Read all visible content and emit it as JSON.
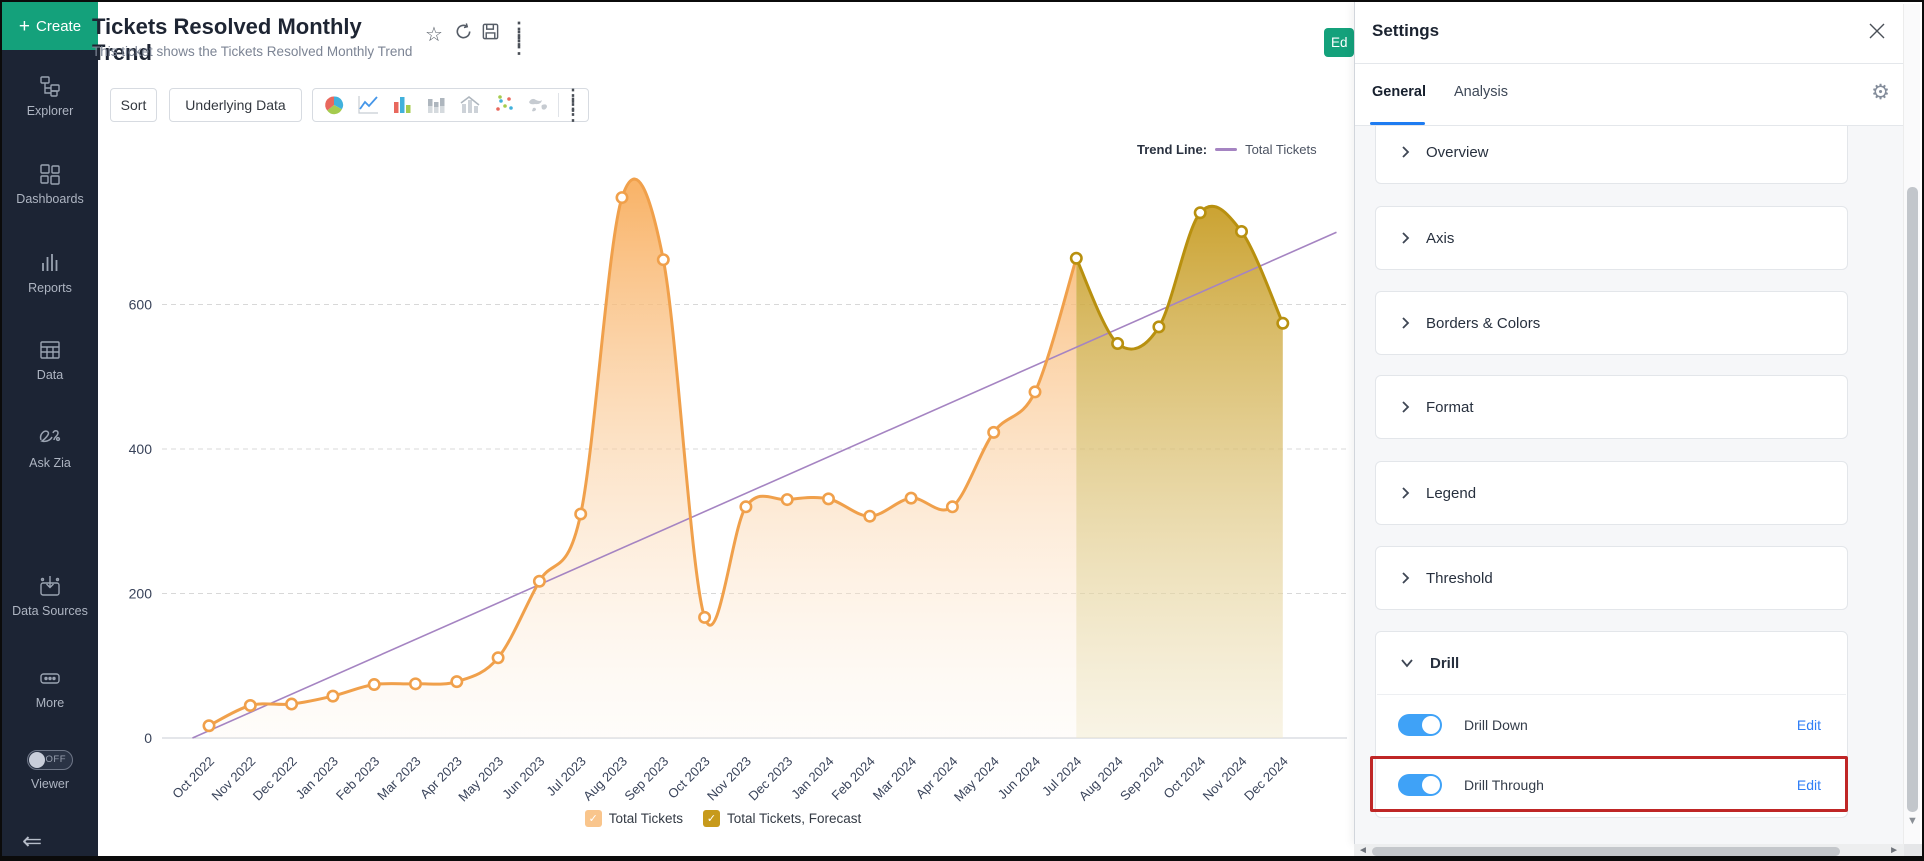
{
  "sidebar": {
    "create": {
      "label": "Create",
      "plus": "+"
    },
    "items": [
      {
        "label": "Explorer",
        "icon": "explorer-tree-icon"
      },
      {
        "label": "Dashboards",
        "icon": "dashboards-grid-icon"
      },
      {
        "label": "Reports",
        "icon": "reports-bars-icon"
      },
      {
        "label": "Data",
        "icon": "data-table-icon"
      },
      {
        "label": "Ask Zia",
        "icon": "ask-zia-icon"
      },
      {
        "label": "Data Sources",
        "icon": "data-sources-icon"
      },
      {
        "label": "More",
        "icon": "more-ellipsis-icon"
      }
    ],
    "viewer_toggle": {
      "label": "Viewer",
      "state": "OFF"
    }
  },
  "header": {
    "title": "Tickets Resolved Monthly Trend",
    "subtitle": "This ticket shows the Tickets Resolved Monthly Trend",
    "action_icons": [
      "star",
      "refresh",
      "save",
      "kebab-menu"
    ],
    "edit_button_visible_text": "Ed"
  },
  "toolbar": {
    "sort_label": "Sort",
    "underlying_data_label": "Underlying Data",
    "chart_type_icons": [
      "pie",
      "line",
      "bar",
      "stacked-bar",
      "bar-line",
      "scatter",
      "map"
    ]
  },
  "settings": {
    "title": "Settings",
    "tabs": [
      {
        "label": "General",
        "active": true
      },
      {
        "label": "Analysis",
        "active": false
      }
    ],
    "active_tab_color": "#1F7CF1",
    "sections": [
      {
        "label": "Overview"
      },
      {
        "label": "Axis"
      },
      {
        "label": "Borders & Colors"
      },
      {
        "label": "Format"
      },
      {
        "label": "Legend"
      },
      {
        "label": "Threshold"
      },
      {
        "label": "Drill"
      }
    ],
    "drill_rows": [
      {
        "label": "Drill Down",
        "enabled": true,
        "action": "Edit",
        "highlighted": false
      },
      {
        "label": "Drill Through",
        "enabled": true,
        "action": "Edit",
        "highlighted": true
      }
    ],
    "toggle_on_color": "#3FA2F7",
    "edit_link_color": "#2F7EF6",
    "highlight_color": "#BF2626"
  },
  "chart_data": {
    "type": "area",
    "categories": [
      "Oct 2022",
      "Nov 2022",
      "Dec 2022",
      "Jan 2023",
      "Feb 2023",
      "Mar 2023",
      "Apr 2023",
      "May 2023",
      "Jun 2023",
      "Jul 2023",
      "Aug 2023",
      "Sep 2023",
      "Oct 2023",
      "Nov 2023",
      "Dec 2023",
      "Jan 2024",
      "Feb 2024",
      "Mar 2024",
      "Apr 2024",
      "May 2024",
      "Jun 2024",
      "Jul 2024",
      "Aug 2024",
      "Sep 2024",
      "Oct 2024",
      "Nov 2024",
      "Dec 2024"
    ],
    "series": [
      {
        "name": "Total Tickets",
        "line_color": "#F0A04B",
        "fill_top": "#F8AC5A",
        "fill_bottom": "#FDF2E6",
        "swatch": "#F9C58C",
        "values": [
          17,
          45,
          47,
          58,
          74,
          75,
          78,
          111,
          217,
          310,
          748,
          662,
          167,
          320,
          330,
          331,
          307,
          332,
          320,
          423,
          479,
          664,
          null,
          null,
          null,
          null,
          null
        ]
      },
      {
        "name": "Total Tickets, Forecast",
        "line_color": "#B8900F",
        "fill_top": "#C69A1E",
        "fill_bottom": "#F2E9CC",
        "swatch": "#C79A1B",
        "values": [
          null,
          null,
          null,
          null,
          null,
          null,
          null,
          null,
          null,
          null,
          null,
          null,
          null,
          null,
          null,
          null,
          null,
          null,
          null,
          null,
          null,
          664,
          546,
          569,
          727,
          701,
          574
        ]
      }
    ],
    "trend_line": {
      "label": "Trend Line:",
      "name": "Total Tickets",
      "color": "#A584C2",
      "start_value": 0,
      "end_value": 700
    },
    "yticks": [
      0,
      200,
      400,
      600
    ],
    "ylim": [
      0,
      800
    ],
    "grid": "dashed-horizontal",
    "legend_position": "bottom",
    "x_label_rotation": -45
  }
}
